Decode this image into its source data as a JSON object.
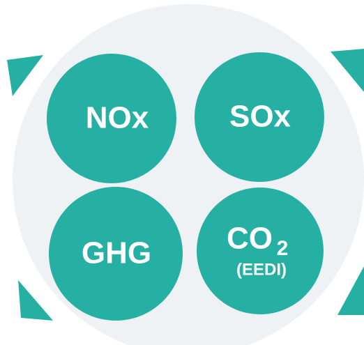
{
  "nodes": [
    {
      "label": "NOx"
    },
    {
      "label": "SOx"
    },
    {
      "label": "GHG"
    },
    {
      "label": "CO",
      "subscript": "2",
      "sublabel": "(EEDI)"
    }
  ]
}
